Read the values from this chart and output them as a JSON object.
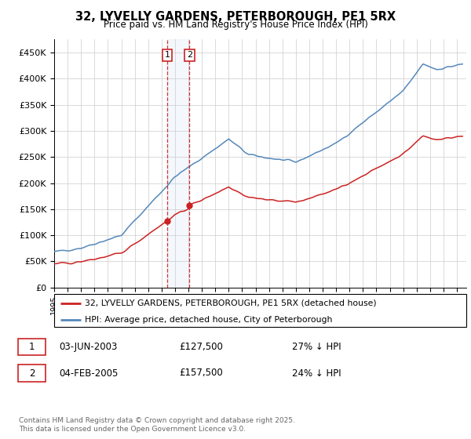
{
  "title": "32, LYVELLY GARDENS, PETERBOROUGH, PE1 5RX",
  "subtitle": "Price paid vs. HM Land Registry's House Price Index (HPI)",
  "ylim": [
    0,
    475000
  ],
  "yticks": [
    0,
    50000,
    100000,
    150000,
    200000,
    250000,
    300000,
    350000,
    400000,
    450000
  ],
  "ytick_labels": [
    "£0",
    "£50K",
    "£100K",
    "£150K",
    "£200K",
    "£250K",
    "£300K",
    "£350K",
    "£400K",
    "£450K"
  ],
  "xlim_start": 1995,
  "xlim_end": 2025.7,
  "hpi_color": "#5588bb",
  "price_color": "#cc2222",
  "sale1_year": 2003.42,
  "sale2_year": 2005.08,
  "sale1_price": 127500,
  "sale2_price": 157500,
  "sale1_date": "03-JUN-2003",
  "sale2_date": "04-FEB-2005",
  "sale1_note": "27% ↓ HPI",
  "sale2_note": "24% ↓ HPI",
  "legend_line1": "32, LYVELLY GARDENS, PETERBOROUGH, PE1 5RX (detached house)",
  "legend_line2": "HPI: Average price, detached house, City of Peterborough",
  "footnote": "Contains HM Land Registry data © Crown copyright and database right 2025.\nThis data is licensed under the Open Government Licence v3.0.",
  "bg_color": "#ffffff",
  "grid_color": "#cccccc"
}
